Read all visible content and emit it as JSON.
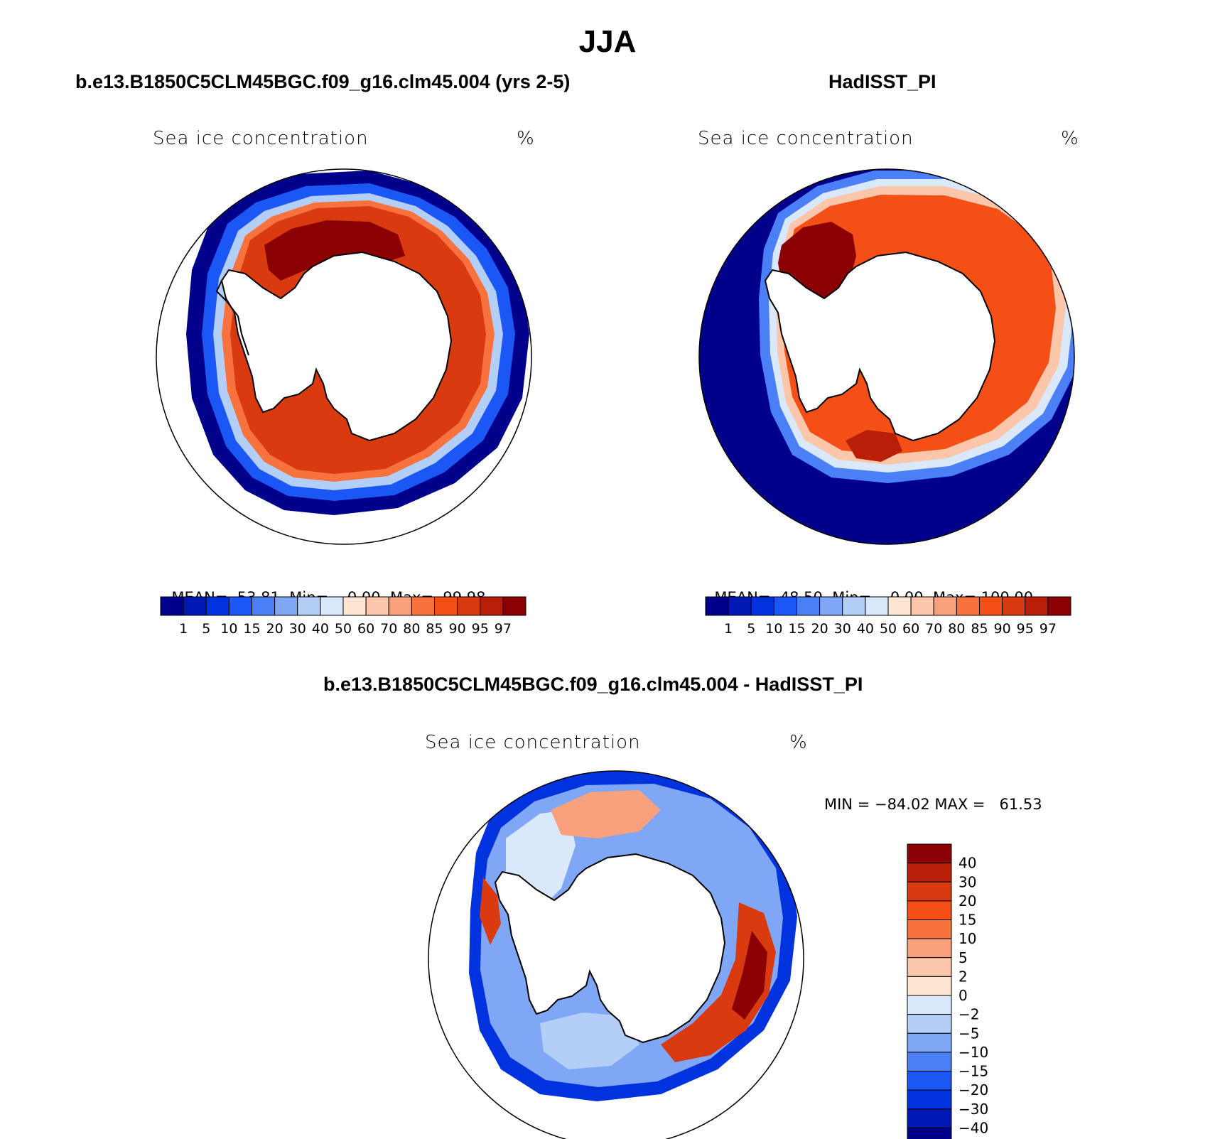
{
  "title": "JJA",
  "panels": [
    {
      "id": "model",
      "header": "b.e13.B1850C5CLM45BGC.f09_g16.clm45.004 (yrs 2-5)",
      "field_label": "Sea ice concentration",
      "units": "%",
      "stats": {
        "mean_label": "MEAN=",
        "mean": "53.81",
        "min_label": "Min=",
        "min": "0.00",
        "max_label": "Max=",
        "max": "99.98"
      }
    },
    {
      "id": "obs",
      "header": "HadISST_PI",
      "field_label": "Sea ice concentration",
      "units": "%",
      "stats": {
        "mean_label": "MEAN=",
        "mean": "48.50",
        "min_label": "Min=",
        "min": "0.00",
        "max_label": "Max=",
        "max": "100.00"
      }
    },
    {
      "id": "diff",
      "header": "b.e13.B1850C5CLM45BGC.f09_g16.clm45.004 - HadISST_PI",
      "field_label": "Sea ice concentration",
      "units": "%",
      "stats_text": "MIN = −84.02 MAX =   61.53"
    }
  ],
  "colorbar_conc": {
    "labels": [
      "1",
      "5",
      "10",
      "15",
      "20",
      "30",
      "40",
      "50",
      "60",
      "70",
      "80",
      "85",
      "90",
      "95",
      "97"
    ],
    "colors": [
      "#00008b",
      "#0019b5",
      "#0033dd",
      "#1a57f5",
      "#4a7ff5",
      "#7fa7f5",
      "#b3cff8",
      "#d9e9fb",
      "#fde7d4",
      "#fbc6a9",
      "#f9a07c",
      "#f7723d",
      "#f44f17",
      "#d93a0f",
      "#b81e08",
      "#8b0000"
    ]
  },
  "colorbar_diff": {
    "labels": [
      "40",
      "30",
      "20",
      "15",
      "10",
      "5",
      "2",
      "0",
      "−2",
      "−5",
      "−10",
      "−15",
      "−20",
      "−30",
      "−40"
    ],
    "colors": [
      "#8b0000",
      "#b81e08",
      "#d93a0f",
      "#f44f17",
      "#f7723d",
      "#f9a07c",
      "#fbc6a9",
      "#fde7d4",
      "#d9e9fb",
      "#b3cff8",
      "#7fa7f5",
      "#4a7ff5",
      "#1a57f5",
      "#0033dd",
      "#0019b5",
      "#00008b"
    ]
  }
}
